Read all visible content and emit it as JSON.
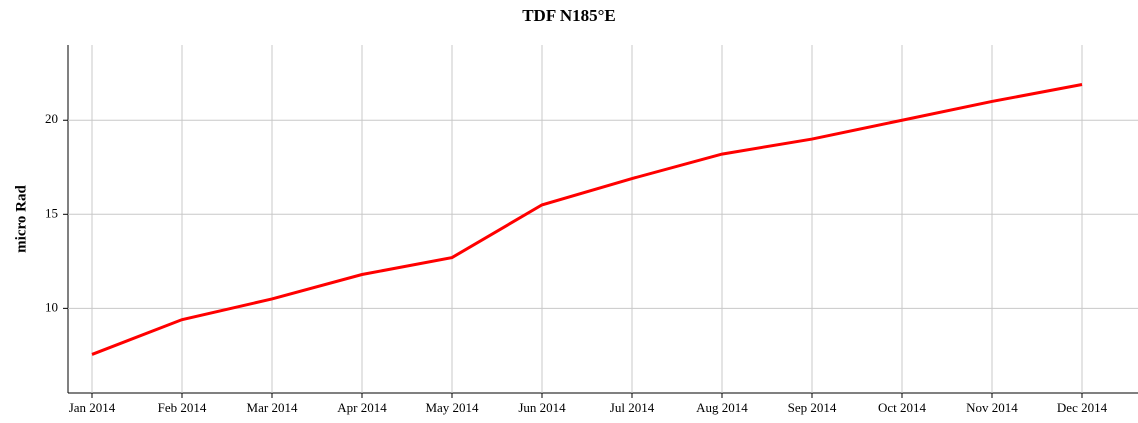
{
  "chart_data": {
    "type": "line",
    "title": "TDF N185°E",
    "y_label": "micro Rad",
    "x": [
      "2014-01",
      "2014-02",
      "2014-03",
      "2014-04",
      "2014-05",
      "2014-06",
      "2014-07",
      "2014-08",
      "2014-09",
      "2014-10",
      "2014-11",
      "2014-12"
    ],
    "series": [
      {
        "name": "TDF N185°E",
        "color": "#ff0000",
        "values": [
          7.55,
          9.4,
          10.5,
          11.8,
          12.7,
          15.5,
          16.9,
          18.2,
          19.0,
          20.0,
          21.0,
          21.9
        ]
      }
    ],
    "xlim": [
      "2014-01",
      "2014-12"
    ],
    "xticks": [
      {
        "value": "2014-01",
        "label": "Jan 2014"
      },
      {
        "value": "2014-02",
        "label": "Feb 2014"
      },
      {
        "value": "2014-03",
        "label": "Mar 2014"
      },
      {
        "value": "2014-04",
        "label": "Apr 2014"
      },
      {
        "value": "2014-05",
        "label": "May 2014"
      },
      {
        "value": "2014-06",
        "label": "Jun 2014"
      },
      {
        "value": "2014-07",
        "label": "Jul 2014"
      },
      {
        "value": "2014-08",
        "label": "Aug 2014"
      },
      {
        "value": "2014-09",
        "label": "Sep 2014"
      },
      {
        "value": "2014-10",
        "label": "Oct 2014"
      },
      {
        "value": "2014-11",
        "label": "Nov 2014"
      },
      {
        "value": "2014-12",
        "label": "Dec 2014"
      }
    ],
    "ylim": [
      5.5,
      24
    ],
    "yticks": [
      10,
      15,
      20
    ],
    "grid": true
  }
}
